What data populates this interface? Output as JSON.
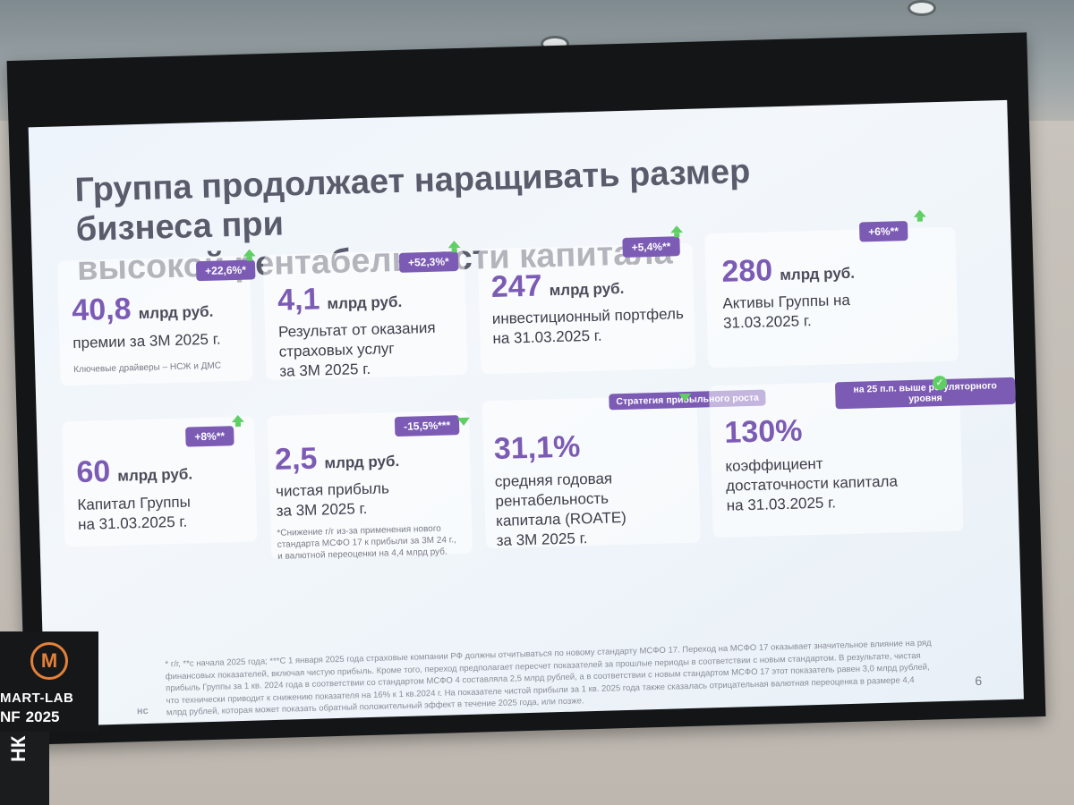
{
  "slide": {
    "title": "Группа продолжает наращивать размер бизнеса при\nвысокой рентабельности капитала",
    "page_number": "6",
    "brand_fragment": "нс",
    "footnote": "* г/г, **с начала 2025 года; ***С 1 января 2025 года страховые компании РФ должны отчитываться по новому стандарту МСФО 17. Переход на МСФО 17 оказывает значительное влияние на ряд финансовых показателей, включая чистую прибыль. Кроме того, переход предполагает пересчет показателей за прошлые периоды в соответствии с новым стандартом. В результате, чистая прибыль Группы за 1 кв. 2024 года в соответствии со стандартом МСФО 4 составляла 2,5 млрд рублей, а в соответствии с новым стандартом МСФО 17 этот показатель равен 3,0 млрд рублей, что технически приводит к снижению показателя на 16% к 1 кв.2024 г. На показателе чистой прибыли за 1 кв. 2025 года также сказалась отрицательная валютная переоценка в размере 4,4 млрд рублей, которая может показать обратный положительный эффект в течение 2025 года, или позже.",
    "metrics": [
      {
        "id": "premiums",
        "badge": "+22,6%*",
        "value": "40,8",
        "unit": "млрд руб.",
        "description": "премии за 3М 2025 г.",
        "note": "Ключевые драйверы – НСЖ и ДМС"
      },
      {
        "id": "insurance-result",
        "badge": "+52,3%*",
        "value": "4,1",
        "unit": "млрд руб.",
        "description": "Результат от оказания\nстраховых услуг\nза 3М 2025 г."
      },
      {
        "id": "portfolio",
        "badge": "+5,4%**",
        "value": "247",
        "unit": "млрд руб.",
        "description": "инвестиционный портфель\nна 31.03.2025 г."
      },
      {
        "id": "assets",
        "badge": "+6%**",
        "value": "280",
        "unit": "млрд руб.",
        "description": "Активы Группы на\n31.03.2025 г."
      },
      {
        "id": "capital",
        "badge": "+8%**",
        "value": "60",
        "unit": "млрд руб.",
        "description": "Капитал Группы\nна 31.03.2025 г."
      },
      {
        "id": "net-profit",
        "badge": "-15,5%***",
        "value": "2,5",
        "unit": "млрд руб.",
        "description": "чистая прибыль\nза 3М 2025 г.",
        "note": "*Снижение г/г из-за применения нового\nстандарта МСФО 17 к прибыли за 3М 24 г.,\nи валютной переоценки на 4,4 млрд руб."
      },
      {
        "id": "roate",
        "badge": "Стратегия\nприбыльного\nроста",
        "value": "31,1%",
        "unit": "",
        "description": "средняя годовая\nрентабельность\nкапитала (ROATE)\nза 3М 2025 г."
      },
      {
        "id": "adequacy",
        "badge": "на 25 п.п. выше\nрегуляторного\nуровня",
        "value": "130%",
        "unit": "",
        "description": "коэффициент\nдостаточности капитала\nна 31.03.2025 г."
      }
    ]
  },
  "podium": {
    "logo_glyph": "М",
    "line1": "MART-LAB",
    "line2_prefix": "NF",
    "line2_year": "2025",
    "side_text": "НК"
  },
  "colors": {
    "accent": "#7c5bb5",
    "up_arrow": "#5fcf63",
    "title": "#5a5b6b"
  }
}
